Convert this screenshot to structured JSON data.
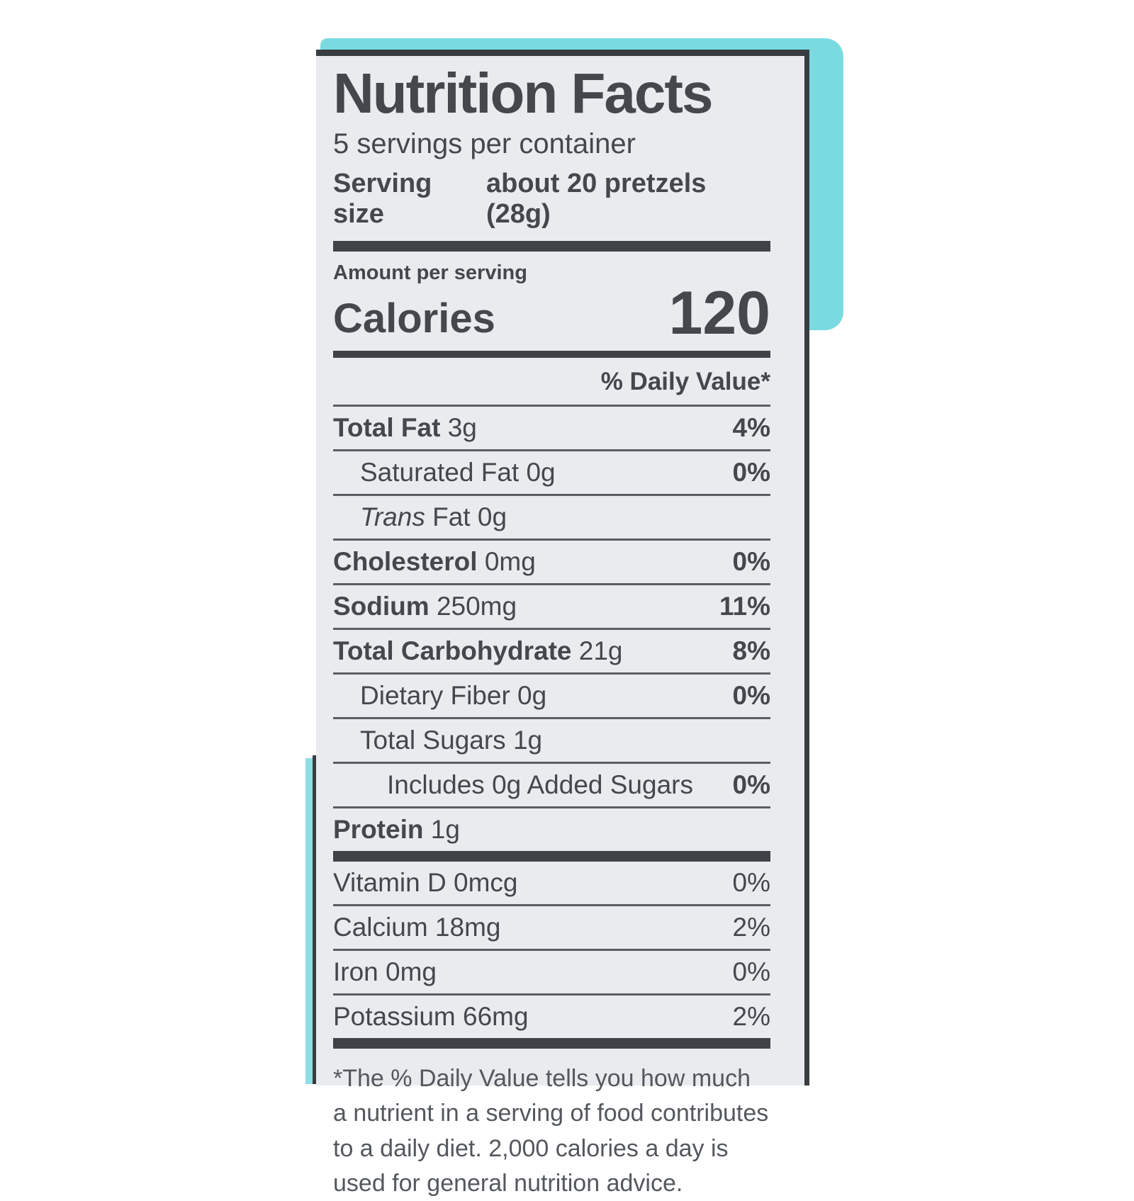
{
  "label": {
    "title": "Nutrition Facts",
    "servings_per_container": "5 servings per container",
    "serving_size_label": "Serving size",
    "serving_size_value": "about 20 pretzels (28g)",
    "amount_per_serving": "Amount per serving",
    "calories_label": "Calories",
    "calories_value": "120",
    "daily_value_header": "% Daily Value*",
    "nutrients": [
      {
        "bold": "Total Fat",
        "italic": "",
        "rest": " 3g",
        "pct": "4%"
      },
      {
        "bold": "",
        "italic": "",
        "rest": "Saturated Fat 0g",
        "pct": "0%"
      },
      {
        "bold": "",
        "italic": "Trans",
        "rest": " Fat 0g",
        "pct": ""
      },
      {
        "bold": "Cholesterol",
        "italic": "",
        "rest": " 0mg",
        "pct": "0%"
      },
      {
        "bold": "Sodium",
        "italic": "",
        "rest": " 250mg",
        "pct": "11%"
      },
      {
        "bold": "Total Carbohydrate",
        "italic": "",
        "rest": " 21g",
        "pct": "8%"
      },
      {
        "bold": "",
        "italic": "",
        "rest": "Dietary Fiber 0g",
        "pct": "0%"
      },
      {
        "bold": "",
        "italic": "",
        "rest": "Total Sugars 1g",
        "pct": ""
      },
      {
        "bold": "",
        "italic": "",
        "rest": "Includes 0g Added Sugars",
        "pct": "0%"
      },
      {
        "bold": "Protein",
        "italic": "",
        "rest": " 1g",
        "pct": ""
      }
    ],
    "micronutrients": [
      {
        "text": "Vitamin D 0mcg",
        "pct": "0%"
      },
      {
        "text": "Calcium 18mg",
        "pct": "2%"
      },
      {
        "text": "Iron 0mg",
        "pct": "0%"
      },
      {
        "text": "Potassium 66mg",
        "pct": "2%"
      }
    ],
    "footnote": "*The % Daily Value tells you how much a nutrient in a serving of food contributes to a daily diet. 2,000 calories a day is used for general nutrition advice."
  },
  "colors": {
    "bag_teal": "#79dbe0",
    "label_background": "#e9ebee",
    "text": "#44484d",
    "rule": "#3f4347"
  }
}
